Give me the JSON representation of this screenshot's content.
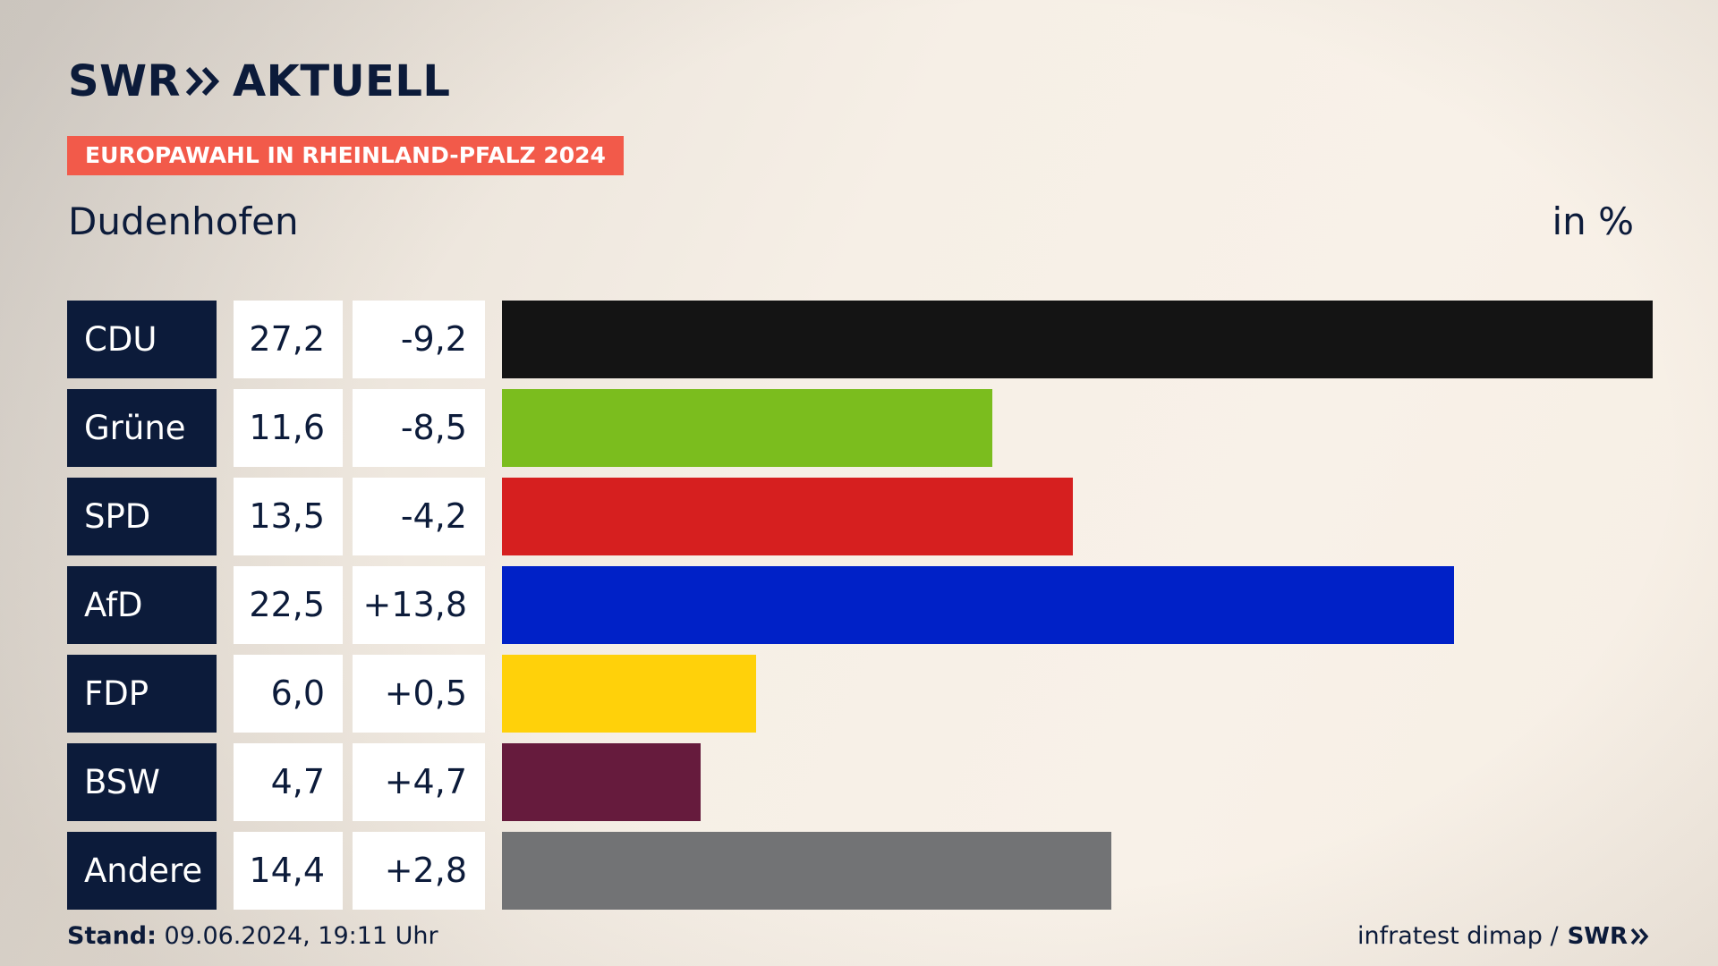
{
  "header": {
    "logo_text_left": "SWR",
    "logo_text_right": "AKTUELL",
    "badge": "EUROPAWAHL IN RHEINLAND-PFALZ 2024",
    "title": "Dudenhofen",
    "unit": "in %"
  },
  "rows": [
    {
      "party": "CDU",
      "value": "27,2",
      "diff": "-9,2"
    },
    {
      "party": "Grüne",
      "value": "11,6",
      "diff": "-8,5"
    },
    {
      "party": "SPD",
      "value": "13,5",
      "diff": "-4,2"
    },
    {
      "party": "AfD",
      "value": "22,5",
      "diff": "+13,8"
    },
    {
      "party": "FDP",
      "value": "6,0",
      "diff": "+0,5"
    },
    {
      "party": "BSW",
      "value": "4,7",
      "diff": "+4,7"
    },
    {
      "party": "Andere",
      "value": "14,4",
      "diff": "+2,8"
    }
  ],
  "chart_data": {
    "type": "bar",
    "orientation": "horizontal",
    "title": "Dudenhofen",
    "unit": "in %",
    "categories": [
      "CDU",
      "Grüne",
      "SPD",
      "AfD",
      "FDP",
      "BSW",
      "Andere"
    ],
    "values": [
      27.2,
      11.6,
      13.5,
      22.5,
      6.0,
      4.7,
      14.4
    ],
    "changes": [
      -9.2,
      -8.5,
      -4.2,
      13.8,
      0.5,
      4.7,
      2.8
    ],
    "colors": [
      "#141414",
      "#7bbd1e",
      "#d61f1f",
      "#0021c7",
      "#ffd10a",
      "#661b3d",
      "#727375"
    ],
    "xlim": [
      0,
      27.2
    ],
    "grid": false,
    "legend": "none"
  },
  "footer": {
    "stand_label": "Stand:",
    "stand_value": "09.06.2024, 19:11 Uhr",
    "source": "infratest dimap /",
    "source_logo": "SWR"
  },
  "colors": {
    "navy": "#0c1b3a",
    "badge": "#f25a4a",
    "background": "#f6efe6"
  }
}
